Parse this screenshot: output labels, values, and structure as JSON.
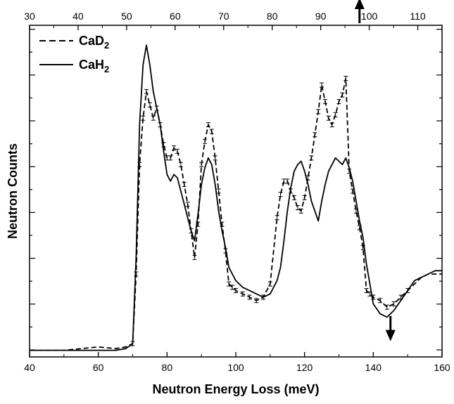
{
  "chart_data": {
    "type": "line",
    "title": "",
    "xlabel": "Neutron Energy Loss (meV)",
    "ylabel": "Neutron Counts",
    "xlim": [
      40,
      160
    ],
    "x_ticks": [
      40,
      60,
      80,
      100,
      120,
      140,
      160
    ],
    "top_axis": {
      "lim": [
        30,
        115
      ],
      "ticks": [
        30,
        40,
        50,
        60,
        70,
        80,
        90,
        100,
        110
      ]
    },
    "ylim": [
      0,
      100
    ],
    "y_tick_labels": false,
    "grid": false,
    "legend_position": "top-left",
    "series": [
      {
        "name": "CaD",
        "name_subscript": "2",
        "style": "dashed",
        "color": "#000000",
        "x": [
          40,
          50,
          55,
          60,
          65,
          68,
          70,
          71,
          72,
          73,
          74,
          75,
          76,
          77,
          78,
          79,
          80,
          81,
          82,
          83,
          84,
          85,
          86,
          87,
          88,
          89,
          90,
          91,
          92,
          93,
          94,
          95,
          96,
          97,
          98,
          99,
          100,
          102,
          104,
          106,
          108,
          110,
          112,
          113,
          114,
          115,
          116,
          117,
          118,
          119,
          120,
          121,
          122,
          123,
          124,
          125,
          126,
          127,
          128,
          129,
          130,
          131,
          132,
          133,
          134,
          135,
          136,
          137,
          138,
          139,
          140,
          142,
          144,
          146,
          148,
          150,
          152,
          154,
          156,
          158,
          160
        ],
        "y": [
          2,
          2,
          2.5,
          3,
          2.5,
          3,
          4,
          25,
          58,
          72,
          80,
          76,
          72,
          75,
          70,
          64,
          60,
          60,
          63,
          62,
          58,
          52,
          46,
          38,
          30,
          40,
          58,
          65,
          70,
          68,
          60,
          50,
          40,
          32,
          22,
          21,
          20,
          19,
          18,
          17,
          18,
          22,
          42,
          49,
          53,
          53,
          50,
          48,
          45,
          44,
          48,
          54,
          60,
          67,
          74,
          82,
          77,
          72,
          70,
          73,
          77,
          79,
          84,
          56,
          50,
          44,
          39,
          33,
          20,
          19,
          18,
          17,
          15,
          16,
          18,
          20,
          22,
          24,
          25,
          25,
          25
        ]
      },
      {
        "name": "CaH",
        "name_subscript": "2",
        "style": "solid",
        "color": "#000000",
        "x": [
          40,
          50,
          55,
          60,
          65,
          68,
          70,
          71,
          72,
          73,
          74,
          75,
          76,
          77,
          78,
          79,
          80,
          81,
          82,
          83,
          84,
          85,
          86,
          87,
          88,
          89,
          90,
          91,
          92,
          93,
          94,
          95,
          96,
          97,
          98,
          99,
          100,
          102,
          104,
          106,
          108,
          110,
          112,
          113,
          114,
          115,
          116,
          117,
          118,
          119,
          120,
          121,
          122,
          123,
          124,
          125,
          126,
          127,
          128,
          129,
          130,
          131,
          132,
          133,
          134,
          135,
          136,
          137,
          138,
          139,
          140,
          142,
          144,
          146,
          148,
          150,
          152,
          154,
          156,
          158,
          160
        ],
        "y": [
          2,
          2,
          2,
          2,
          2,
          2.5,
          4,
          30,
          70,
          88,
          94,
          88,
          80,
          75,
          70,
          62,
          55,
          53,
          55,
          54,
          50,
          46,
          42,
          38,
          35,
          43,
          52,
          57,
          60,
          58,
          52,
          44,
          38,
          33,
          27,
          25,
          23,
          21,
          20,
          19,
          18,
          19,
          23,
          27,
          35,
          44,
          51,
          56,
          58,
          59,
          56,
          52,
          47,
          44,
          41,
          47,
          52,
          56,
          58,
          60,
          59,
          58,
          60,
          57,
          53,
          47,
          41,
          36,
          28,
          22,
          16,
          13,
          12,
          14,
          17,
          20,
          23,
          24,
          25,
          26,
          26
        ]
      }
    ],
    "annotations": [
      {
        "type": "arrow",
        "direction": "up",
        "x": 136,
        "y": 107
      },
      {
        "type": "arrow",
        "direction": "down",
        "x": 145,
        "y": 6
      }
    ]
  }
}
